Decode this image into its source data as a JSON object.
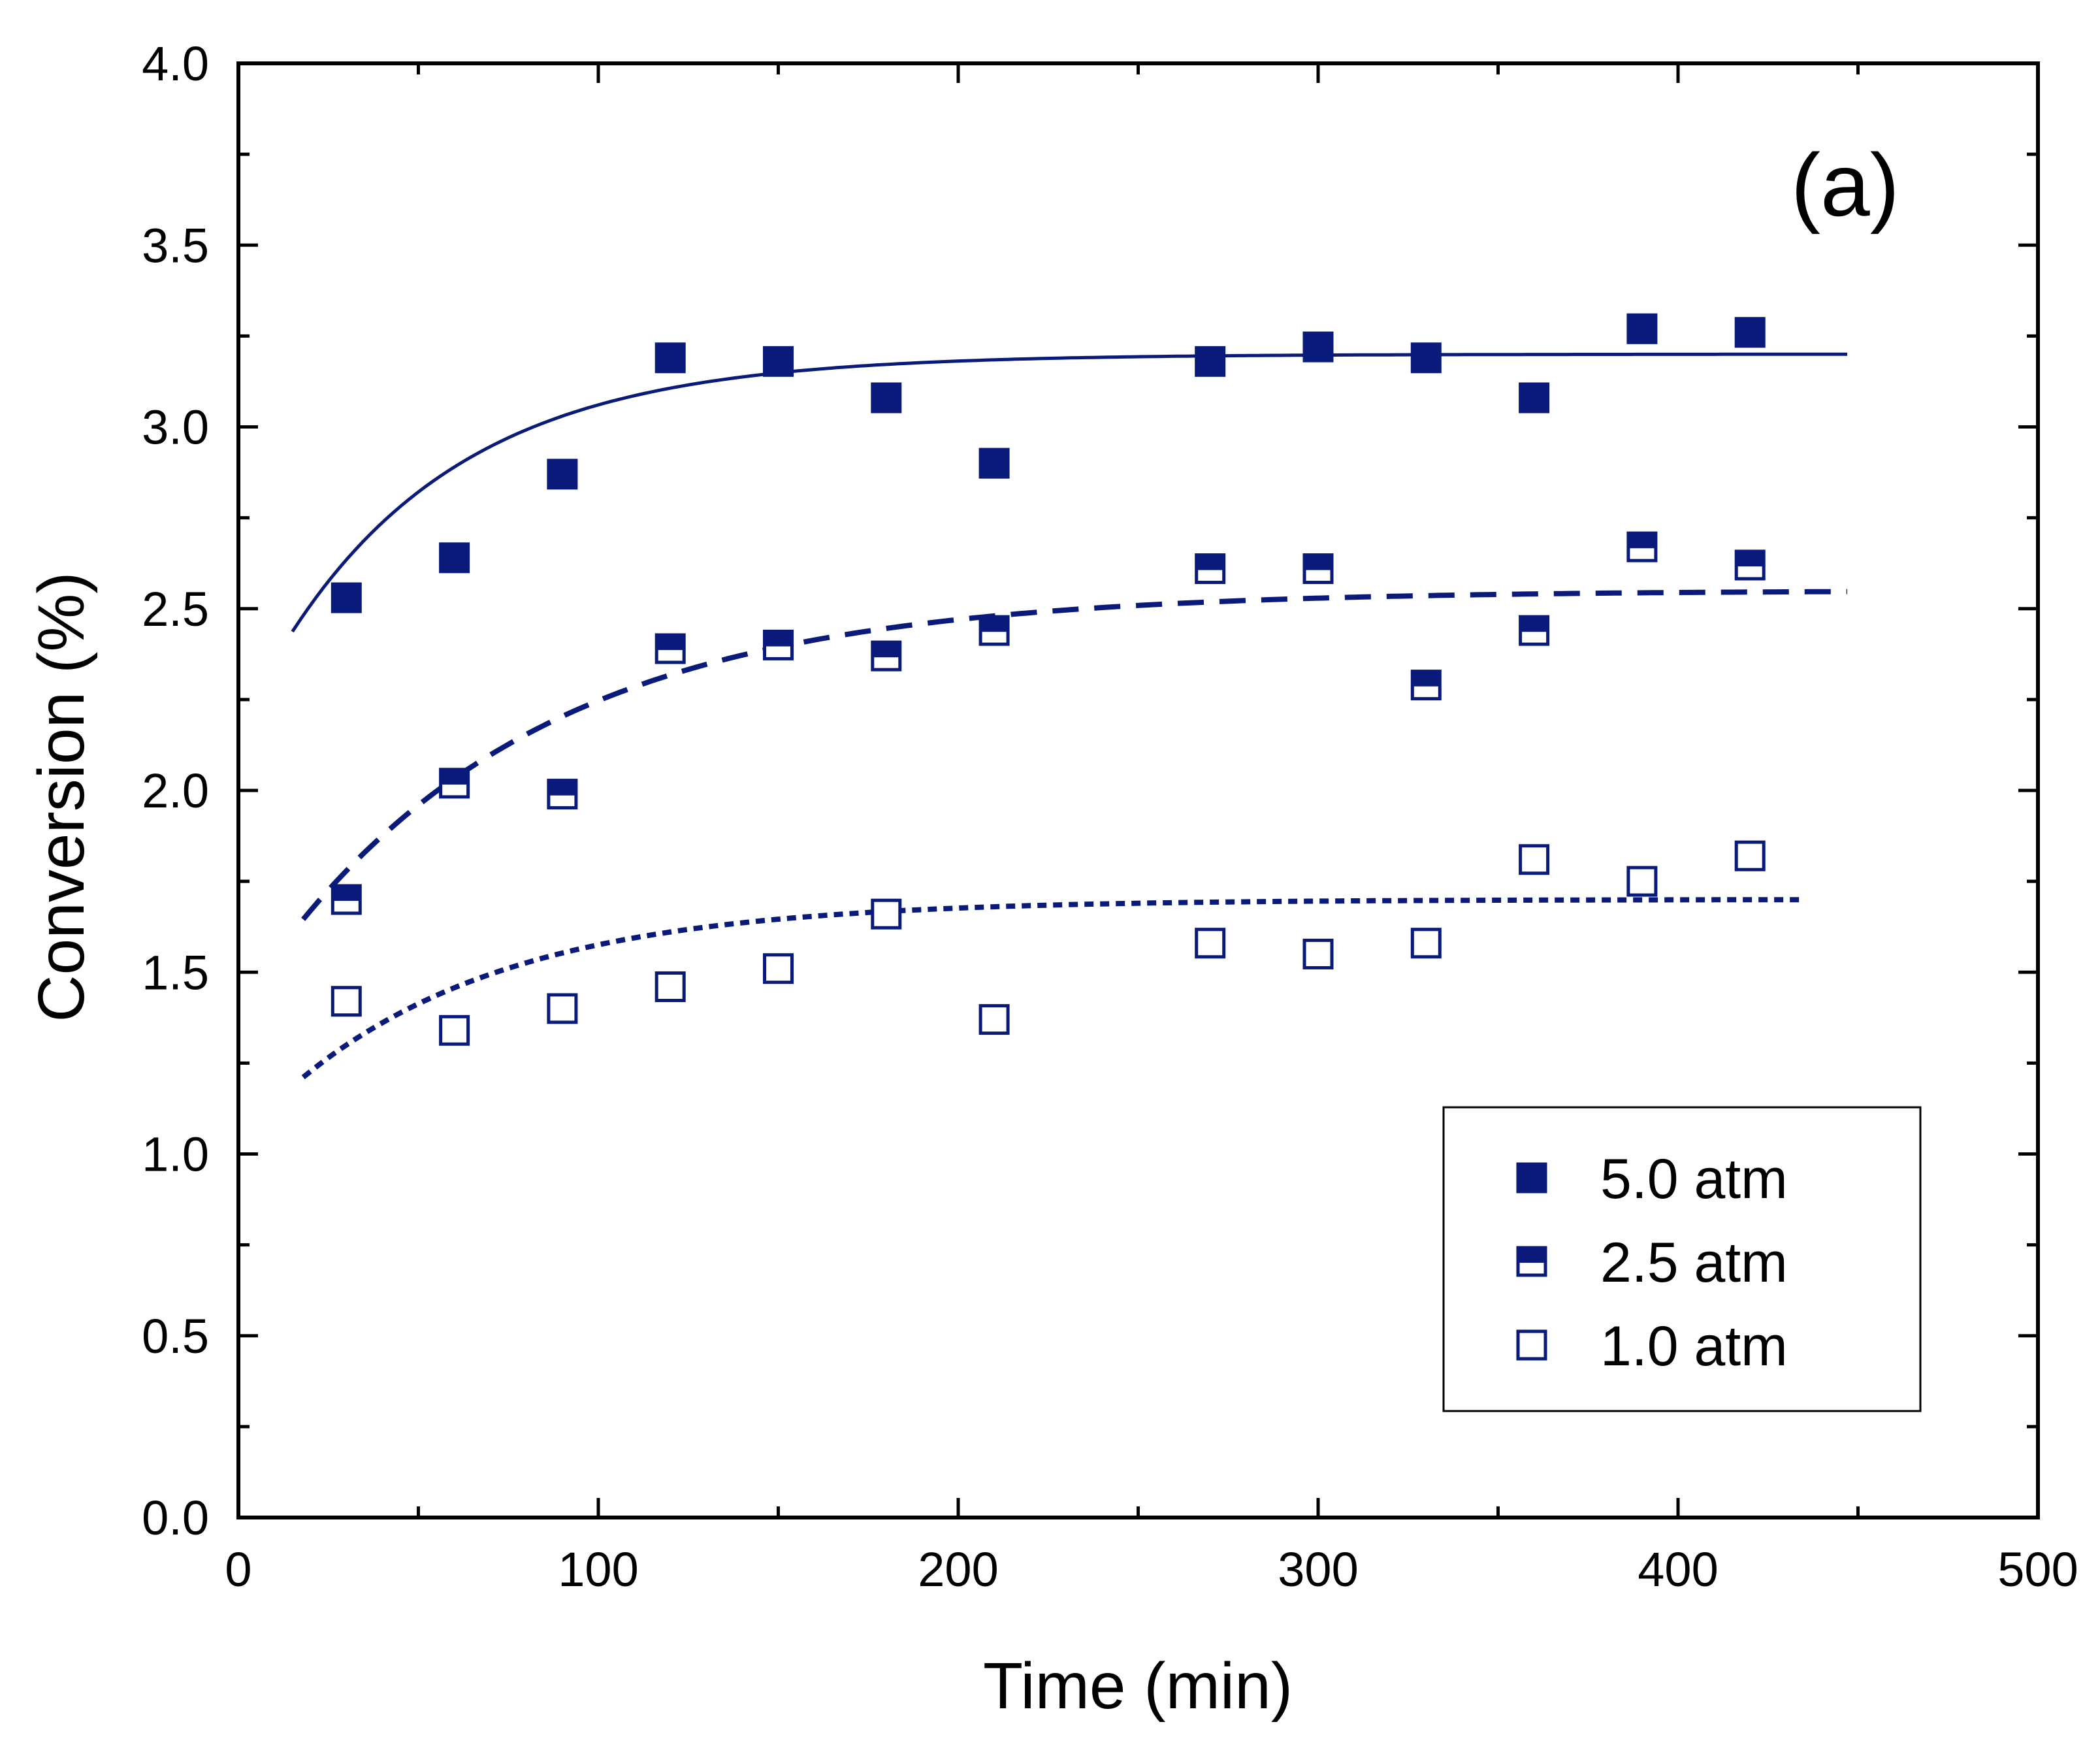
{
  "chart_data": {
    "type": "scatter",
    "panel_label": "(a)",
    "xlabel": "Time (min)",
    "ylabel": "Conversion (%)",
    "xlim": [
      0,
      500
    ],
    "ylim": [
      0,
      4.0
    ],
    "x_ticks": [
      0,
      100,
      200,
      300,
      400,
      500
    ],
    "x_tick_labels": [
      "0",
      "100",
      "200",
      "300",
      "400",
      "500"
    ],
    "y_ticks": [
      0.0,
      0.5,
      1.0,
      1.5,
      2.0,
      2.5,
      3.0,
      3.5,
      4.0
    ],
    "y_tick_labels": [
      "0.0",
      "0.5",
      "1.0",
      "1.5",
      "2.0",
      "2.5",
      "3.0",
      "3.5",
      "4.0"
    ],
    "grid": false,
    "legend_position": "bottom-right",
    "colors": {
      "series": "#0a1a7a",
      "axis": "#000000",
      "background": "#ffffff"
    },
    "series": [
      {
        "name": "5.0 atm",
        "marker": "filled-square",
        "x": [
          30,
          60,
          90,
          120,
          150,
          180,
          210,
          270,
          300,
          330,
          360,
          390,
          420
        ],
        "y": [
          2.53,
          2.64,
          2.87,
          3.19,
          3.18,
          3.08,
          2.9,
          3.18,
          3.22,
          3.19,
          3.08,
          3.27,
          3.26
        ],
        "fit": {
          "style": "solid",
          "model": "A - B*exp(-x/tau)",
          "A": 3.2,
          "B": 1.03,
          "tau": 50,
          "x_range": [
            15,
            447
          ]
        }
      },
      {
        "name": "2.5 atm",
        "marker": "half-filled-square",
        "x": [
          30,
          60,
          90,
          120,
          150,
          180,
          210,
          270,
          300,
          330,
          360,
          390,
          420
        ],
        "y": [
          1.7,
          2.02,
          1.99,
          2.39,
          2.4,
          2.37,
          2.44,
          2.61,
          2.61,
          2.29,
          2.44,
          2.67,
          2.62
        ],
        "fit": {
          "style": "dashed",
          "model": "A - B*exp(-x/tau)",
          "A": 2.55,
          "B": 1.15,
          "tau": 75,
          "x_range": [
            18,
            447
          ]
        }
      },
      {
        "name": "1.0 atm",
        "marker": "open-square",
        "x": [
          30,
          60,
          90,
          120,
          150,
          180,
          210,
          270,
          300,
          330,
          360,
          390,
          420
        ],
        "y": [
          1.42,
          1.34,
          1.4,
          1.46,
          1.51,
          1.66,
          1.37,
          1.58,
          1.55,
          1.58,
          1.81,
          1.75,
          1.82
        ],
        "fit": {
          "style": "dotted",
          "model": "A - B*exp(-x/tau)",
          "A": 1.7,
          "B": 0.66,
          "tau": 60,
          "x_range": [
            18,
            435
          ]
        }
      }
    ]
  }
}
